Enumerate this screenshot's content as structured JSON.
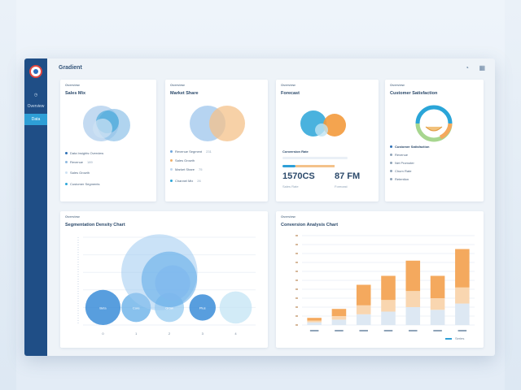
{
  "app": {
    "title": "Gradient"
  },
  "sidebar": {
    "items": [
      {
        "label": "Overview"
      },
      {
        "label": "Data",
        "active": true
      }
    ]
  },
  "topbar": {
    "help_icon": "help-icon",
    "grid_icon": "grid-icon"
  },
  "cards": [
    {
      "label": "Overview",
      "title": "Sales Mix",
      "legend": [
        {
          "text": "Data Insights Overview",
          "value": "",
          "color": "#2c6fb6"
        },
        {
          "text": "Revenue",
          "value": "189",
          "color": "#8fb9e0"
        },
        {
          "text": "Sales Growth",
          "value": "",
          "color": "#cfe2f3"
        },
        {
          "text": "Customer Segments",
          "value": "",
          "color": "#2aa5d8"
        }
      ]
    },
    {
      "label": "Overview",
      "title": "Market Share",
      "legend": [
        {
          "text": "Revenue Segment",
          "value": "231",
          "color": "#6fa6dd"
        },
        {
          "text": "Sales Growth",
          "value": "",
          "color": "#f0b06a"
        },
        {
          "text": "Market Share",
          "value": "75",
          "color": "#bfd7ef"
        },
        {
          "text": "Channel Mix",
          "value": "26",
          "color": "#2aa5d8"
        }
      ]
    },
    {
      "label": "Overview",
      "title": "Forecast",
      "bar_label": "Conversion Rate",
      "stats": [
        {
          "value": "1570CS",
          "caption": "Sales Rate"
        },
        {
          "value": "87 FM",
          "caption": "Forecast"
        }
      ]
    },
    {
      "label": "Overview",
      "title": "Customer Satisfaction",
      "gauge_percent": 72,
      "list": [
        {
          "text": "Customer Satisfaction",
          "value": ""
        },
        {
          "text": "Revenue",
          "value": ""
        },
        {
          "text": "Net Promoter",
          "value": ""
        },
        {
          "text": "Churn Rate",
          "value": ""
        },
        {
          "text": "Retention",
          "value": ""
        }
      ]
    }
  ],
  "bubble_panel": {
    "label": "Overview",
    "title": "Segmentation Density Chart",
    "bubble_labels": [
      "Beta",
      "Core",
      "Grow",
      "Plus",
      ""
    ],
    "x_ticks": [
      "0",
      "1",
      "2",
      "3",
      "4"
    ]
  },
  "bar_panel": {
    "label": "Overview",
    "title": "Conversion Analysis Chart",
    "legend": "Series"
  },
  "chart_data": [
    {
      "type": "scatter",
      "title": "Segmentation Density Chart",
      "series": [
        {
          "values": [
            {
              "x": 0,
              "y": 1,
              "size": 1.2
            },
            {
              "x": 1,
              "y": 1,
              "size": 1.0
            },
            {
              "x": 2,
              "y": 1,
              "size": 1.0
            },
            {
              "x": 3,
              "y": 1,
              "size": 0.9
            },
            {
              "x": 4,
              "y": 1,
              "size": 1.1
            },
            {
              "x": 1.7,
              "y": 3,
              "size": 2.6
            },
            {
              "x": 2.0,
              "y": 2.6,
              "size": 1.9
            },
            {
              "x": 2.1,
              "y": 2.4,
              "size": 1.2
            }
          ]
        }
      ],
      "xlim": [
        -0.6,
        4.6
      ],
      "ylim": [
        0,
        5
      ]
    },
    {
      "type": "bar",
      "title": "Conversion Analysis Chart",
      "categories": [
        "1",
        "2",
        "3",
        "4",
        "5",
        "6",
        "7"
      ],
      "series": [
        {
          "values": [
            8,
            18,
            45,
            55,
            72,
            55,
            85
          ],
          "color": "#f4a95e"
        },
        {
          "values": [
            5,
            10,
            22,
            28,
            38,
            30,
            42
          ],
          "color": "#f9d6b0"
        },
        {
          "values": [
            3,
            6,
            12,
            15,
            20,
            17,
            24
          ],
          "color": "#dde8f3"
        }
      ],
      "ylim": [
        0,
        100
      ],
      "grid": true
    }
  ]
}
